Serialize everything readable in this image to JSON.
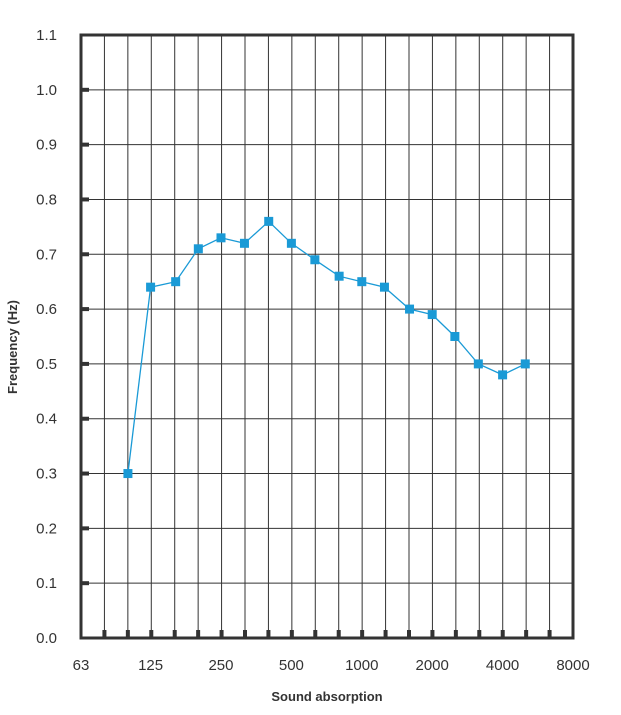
{
  "chart_data": {
    "type": "line",
    "xlabel": "Sound absorption",
    "ylabel": "Frequency (Hz)",
    "x_tick_labels": [
      "63",
      "125",
      "250",
      "500",
      "1000",
      "2000",
      "4000",
      "8000"
    ],
    "y_tick_labels": [
      "0.0",
      "0.1",
      "0.2",
      "0.3",
      "0.4",
      "0.5",
      "0.6",
      "0.7",
      "0.8",
      "0.9",
      "1.0",
      "1.1"
    ],
    "xlim": [
      63,
      8000
    ],
    "ylim": [
      0,
      1.1
    ],
    "x_scale": "log2",
    "grid": true,
    "series": [
      {
        "color": "#1a9ad6",
        "marker": "square",
        "x": [
          100,
          125,
          160,
          200,
          250,
          315,
          400,
          500,
          630,
          800,
          1000,
          1250,
          1600,
          2000,
          2500,
          3150,
          4000,
          5000
        ],
        "y": [
          0.3,
          0.64,
          0.65,
          0.71,
          0.73,
          0.72,
          0.76,
          0.72,
          0.69,
          0.66,
          0.65,
          0.64,
          0.6,
          0.59,
          0.55,
          0.5,
          0.48,
          0.5
        ]
      }
    ]
  }
}
